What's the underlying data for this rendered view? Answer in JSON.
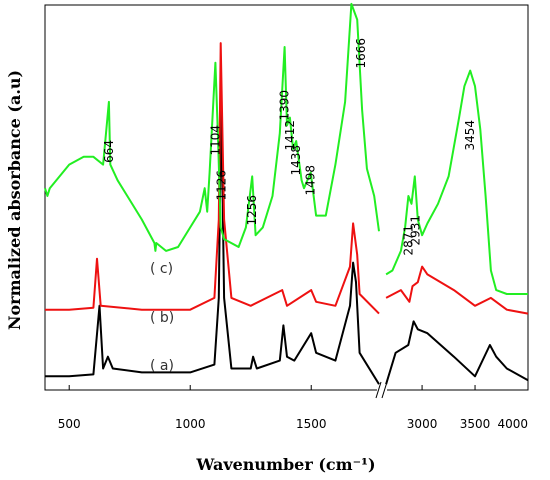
{
  "chart_data": {
    "type": "line",
    "xlabel": "Wavenumber (cm⁻¹)",
    "ylabel": "Normalized absorbance (a.u)",
    "x_segments": [
      {
        "xlim": [
          400,
          1780
        ],
        "ticks": [
          500,
          1000,
          1500
        ],
        "tick_labels": [
          "500",
          "1000",
          "1500"
        ]
      },
      {
        "xlim": [
          2650,
          4000
        ],
        "ticks": [
          3000,
          3500,
          4000
        ],
        "tick_labels": [
          "3000",
          "3500",
          "4000"
        ]
      }
    ],
    "ylim": [
      0,
      1
    ],
    "y_ticks_shown": false,
    "axis_break_between_segments": true,
    "series": [
      {
        "name": "(a)",
        "color": "#000000",
        "curve_label": "( a)",
        "points": [
          [
            400,
            0.04
          ],
          [
            500,
            0.04
          ],
          [
            600,
            0.045
          ],
          [
            625,
            0.22
          ],
          [
            640,
            0.06
          ],
          [
            660,
            0.09
          ],
          [
            680,
            0.06
          ],
          [
            800,
            0.05
          ],
          [
            1000,
            0.05
          ],
          [
            1100,
            0.07
          ],
          [
            1118,
            0.24
          ],
          [
            1128,
            0.75
          ],
          [
            1140,
            0.24
          ],
          [
            1170,
            0.06
          ],
          [
            1250,
            0.06
          ],
          [
            1260,
            0.09
          ],
          [
            1275,
            0.06
          ],
          [
            1370,
            0.08
          ],
          [
            1385,
            0.17
          ],
          [
            1400,
            0.09
          ],
          [
            1430,
            0.08
          ],
          [
            1500,
            0.15
          ],
          [
            1520,
            0.1
          ],
          [
            1600,
            0.08
          ],
          [
            1660,
            0.22
          ],
          [
            1673,
            0.33
          ],
          [
            1685,
            0.28
          ],
          [
            1700,
            0.1
          ],
          [
            1780,
            0.02
          ],
          [
            2660,
            0.02
          ],
          [
            2750,
            0.1
          ],
          [
            2870,
            0.12
          ],
          [
            2920,
            0.18
          ],
          [
            2960,
            0.16
          ],
          [
            3050,
            0.15
          ],
          [
            3300,
            0.09
          ],
          [
            3500,
            0.04
          ],
          [
            3640,
            0.12
          ],
          [
            3700,
            0.09
          ],
          [
            3800,
            0.06
          ],
          [
            4000,
            0.03
          ]
        ],
        "peaks": []
      },
      {
        "name": "(b)",
        "color": "#ee1111",
        "curve_label": "( b)",
        "points": [
          [
            400,
            0.21
          ],
          [
            500,
            0.21
          ],
          [
            600,
            0.215
          ],
          [
            615,
            0.34
          ],
          [
            630,
            0.22
          ],
          [
            800,
            0.21
          ],
          [
            1000,
            0.21
          ],
          [
            1100,
            0.24
          ],
          [
            1118,
            0.44
          ],
          [
            1126,
            0.89
          ],
          [
            1140,
            0.44
          ],
          [
            1170,
            0.24
          ],
          [
            1250,
            0.22
          ],
          [
            1380,
            0.26
          ],
          [
            1400,
            0.22
          ],
          [
            1500,
            0.26
          ],
          [
            1520,
            0.23
          ],
          [
            1600,
            0.22
          ],
          [
            1660,
            0.32
          ],
          [
            1673,
            0.43
          ],
          [
            1690,
            0.35
          ],
          [
            1700,
            0.25
          ],
          [
            1780,
            0.2
          ],
          [
            2660,
            0.24
          ],
          [
            2800,
            0.26
          ],
          [
            2880,
            0.23
          ],
          [
            2910,
            0.27
          ],
          [
            2960,
            0.28
          ],
          [
            3000,
            0.32
          ],
          [
            3050,
            0.3
          ],
          [
            3300,
            0.26
          ],
          [
            3500,
            0.22
          ],
          [
            3650,
            0.24
          ],
          [
            3800,
            0.21
          ],
          [
            4000,
            0.2
          ]
        ],
        "peaks": []
      },
      {
        "name": "(c)",
        "color": "#22ee22",
        "curve_label": "( c)",
        "points": [
          [
            400,
            0.52
          ],
          [
            410,
            0.5
          ],
          [
            420,
            0.52
          ],
          [
            500,
            0.58
          ],
          [
            560,
            0.6
          ],
          [
            600,
            0.6
          ],
          [
            640,
            0.58
          ],
          [
            664,
            0.74
          ],
          [
            670,
            0.58
          ],
          [
            700,
            0.54
          ],
          [
            800,
            0.44
          ],
          [
            852,
            0.38
          ],
          [
            856,
            0.36
          ],
          [
            860,
            0.38
          ],
          [
            900,
            0.36
          ],
          [
            950,
            0.37
          ],
          [
            1000,
            0.42
          ],
          [
            1040,
            0.46
          ],
          [
            1060,
            0.52
          ],
          [
            1070,
            0.46
          ],
          [
            1080,
            0.56
          ],
          [
            1104,
            0.84
          ],
          [
            1115,
            0.64
          ],
          [
            1126,
            0.42
          ],
          [
            1140,
            0.39
          ],
          [
            1200,
            0.37
          ],
          [
            1230,
            0.42
          ],
          [
            1256,
            0.55
          ],
          [
            1270,
            0.4
          ],
          [
            1300,
            0.42
          ],
          [
            1340,
            0.5
          ],
          [
            1370,
            0.66
          ],
          [
            1390,
            0.88
          ],
          [
            1400,
            0.68
          ],
          [
            1412,
            0.7
          ],
          [
            1425,
            0.62
          ],
          [
            1438,
            0.64
          ],
          [
            1460,
            0.54
          ],
          [
            1470,
            0.52
          ],
          [
            1498,
            0.56
          ],
          [
            1520,
            0.45
          ],
          [
            1560,
            0.45
          ],
          [
            1600,
            0.58
          ],
          [
            1640,
            0.74
          ],
          [
            1666,
            0.99
          ],
          [
            1690,
            0.95
          ],
          [
            1710,
            0.72
          ],
          [
            1730,
            0.57
          ],
          [
            1760,
            0.5
          ],
          [
            1780,
            0.41
          ],
          [
            2660,
            0.3
          ],
          [
            2720,
            0.31
          ],
          [
            2800,
            0.36
          ],
          [
            2840,
            0.42
          ],
          [
            2871,
            0.5
          ],
          [
            2900,
            0.48
          ],
          [
            2931,
            0.55
          ],
          [
            2960,
            0.44
          ],
          [
            3000,
            0.4
          ],
          [
            3050,
            0.43
          ],
          [
            3150,
            0.48
          ],
          [
            3250,
            0.55
          ],
          [
            3350,
            0.7
          ],
          [
            3400,
            0.78
          ],
          [
            3454,
            0.82
          ],
          [
            3500,
            0.78
          ],
          [
            3550,
            0.67
          ],
          [
            3600,
            0.5
          ],
          [
            3650,
            0.31
          ],
          [
            3700,
            0.26
          ],
          [
            3800,
            0.25
          ],
          [
            4000,
            0.25
          ]
        ],
        "peaks": [
          "664",
          "1104",
          "1126",
          "1256",
          "1390",
          "1412",
          "1438",
          "1498",
          "1666",
          "2871",
          "2931",
          "3454"
        ]
      }
    ]
  }
}
